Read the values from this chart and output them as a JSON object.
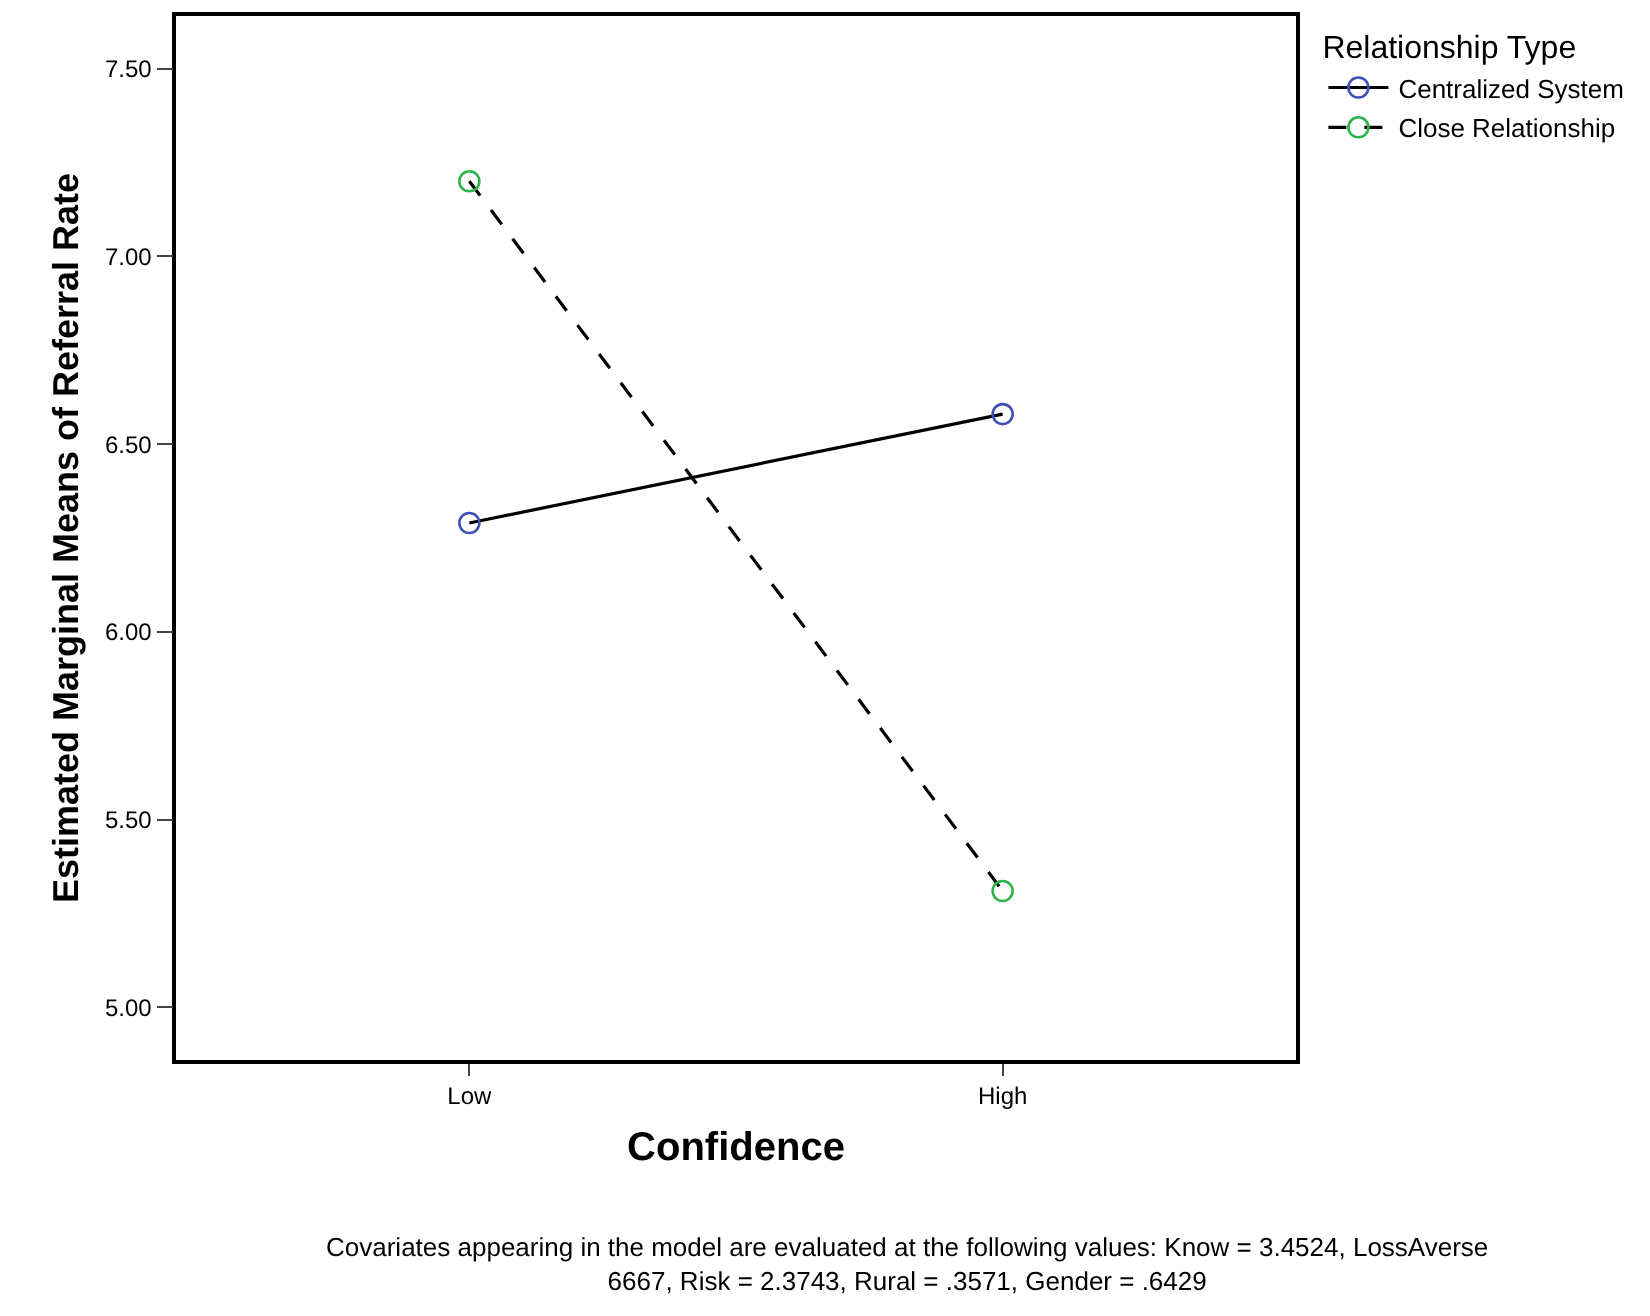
{
  "chart_data": {
    "type": "line",
    "xlabel": "Confidence",
    "ylabel": "Estimated Marginal Means of Referral Rate",
    "legend_title": "Relationship Type",
    "categories": [
      "Low",
      "High"
    ],
    "series": [
      {
        "name": "Centralized System",
        "color": "#3f51b5",
        "values": [
          6.29,
          6.58
        ],
        "line_style": "solid"
      },
      {
        "name": "Close Relationship",
        "color": "#2db34a",
        "values": [
          7.2,
          5.31
        ],
        "line_style": "dashed"
      }
    ],
    "ylim": [
      4.86,
      7.64
    ],
    "yticks": [
      {
        "value": 5,
        "label": "5.00"
      },
      {
        "value": 5.5,
        "label": "5.50"
      },
      {
        "value": 6,
        "label": "6.00"
      },
      {
        "value": 6.5,
        "label": "6.50"
      },
      {
        "value": 7,
        "label": "7.00"
      },
      {
        "value": 7.5,
        "label": "7.50"
      }
    ],
    "grid": false,
    "legend": "top right",
    "marker": "circle",
    "annotations": [
      "Covariates appearing in the model are evaluated at the following values: Know = 3.4524, LossAverse\n6667, Risk = 2.3743, Rural = .3571, Gender = .6429"
    ]
  }
}
